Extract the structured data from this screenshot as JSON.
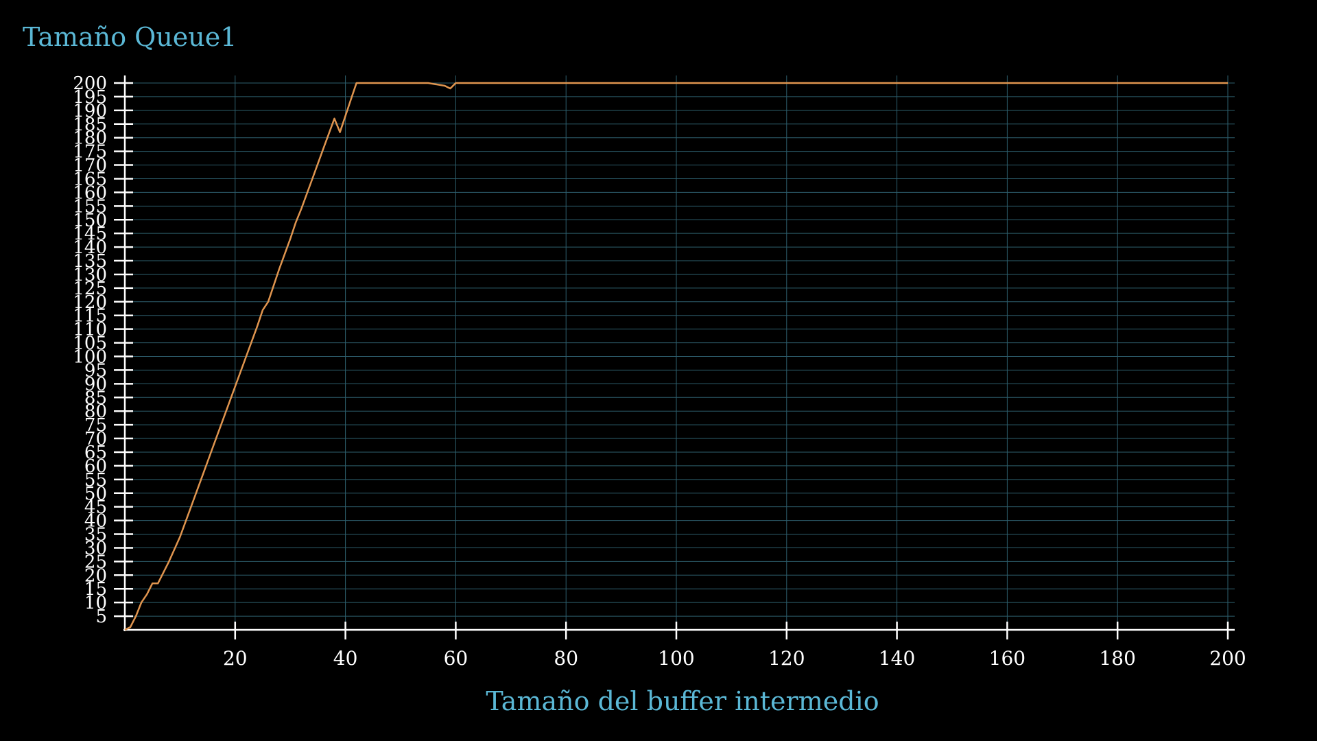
{
  "chart_data": {
    "type": "line",
    "title": "Tamaño Queue1",
    "xlabel": "Tamaño del buffer intermedio",
    "ylabel": "",
    "xlim": [
      0,
      200
    ],
    "ylim": [
      0,
      200
    ],
    "x_ticks": [
      20,
      40,
      60,
      80,
      100,
      120,
      140,
      160,
      180,
      200
    ],
    "y_ticks": [
      5,
      10,
      15,
      20,
      25,
      30,
      35,
      40,
      45,
      50,
      55,
      60,
      65,
      70,
      75,
      80,
      85,
      90,
      95,
      100,
      105,
      110,
      115,
      120,
      125,
      130,
      135,
      140,
      145,
      150,
      155,
      160,
      165,
      170,
      175,
      180,
      185,
      190,
      195,
      200
    ],
    "grid": true,
    "colors": {
      "background": "#000000",
      "line": "#e0954f",
      "grid": "#2e5f6e",
      "axis": "#ffffff",
      "labels": "#5bb8d6"
    },
    "series": [
      {
        "x": [
          0,
          1,
          2,
          3,
          4,
          5,
          6,
          7,
          8,
          10,
          12,
          14,
          16,
          18,
          20,
          22,
          24,
          25,
          26,
          28,
          30,
          31,
          32,
          34,
          36,
          38,
          39,
          40,
          41,
          42,
          43,
          45,
          50,
          55,
          58,
          59,
          60,
          80,
          100,
          120,
          140,
          160,
          180,
          200
        ],
        "y": [
          0,
          1,
          5,
          10,
          13,
          17,
          17,
          21,
          25,
          34,
          45,
          56,
          67,
          78,
          89,
          100,
          111,
          117,
          120,
          132,
          143,
          149,
          154,
          165,
          176,
          187,
          182,
          188,
          194,
          200,
          200,
          200,
          200,
          200,
          199,
          198,
          200,
          200,
          200,
          200,
          200,
          200,
          200,
          200
        ]
      }
    ]
  }
}
